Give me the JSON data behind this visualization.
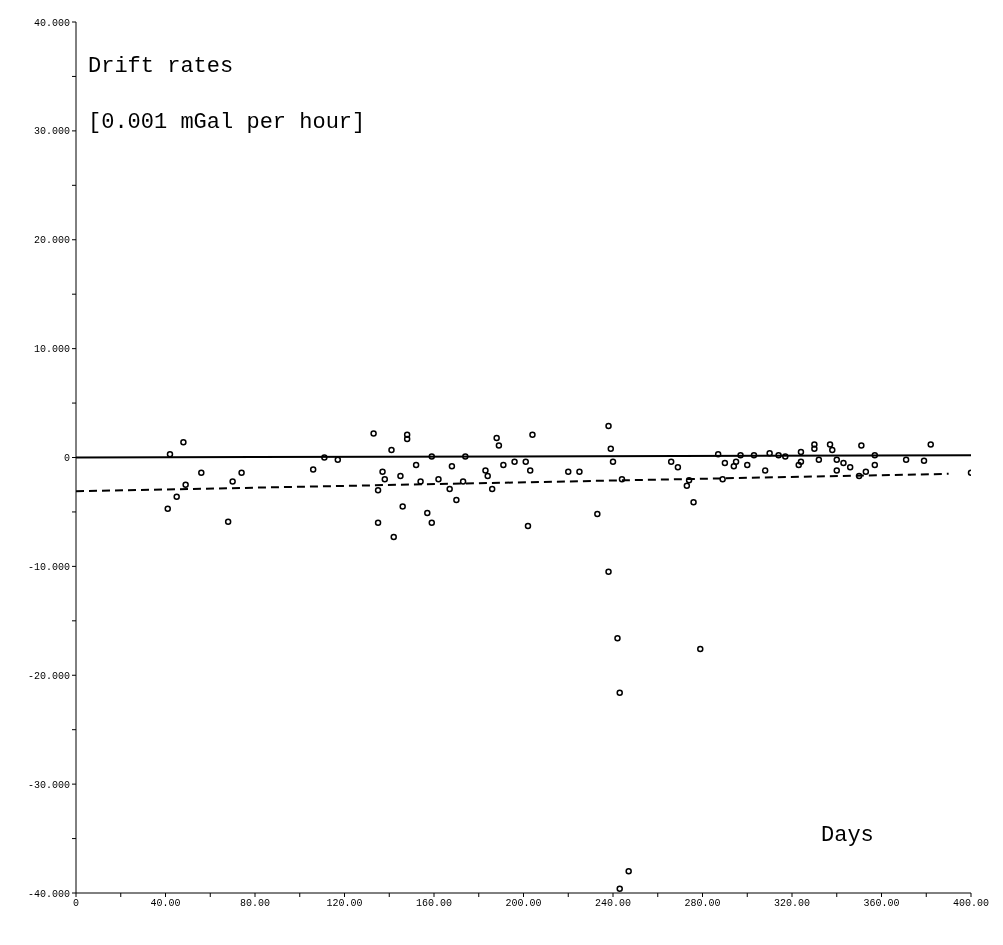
{
  "chart_data": {
    "type": "scatter",
    "title": "Drift rates",
    "ylabel": "[0.001 mGal per hour]",
    "xlabel": "Days",
    "xlim": [
      0,
      400
    ],
    "ylim": [
      -40,
      40
    ],
    "xticks": [
      0,
      {
        "value": 20,
        "label": null
      },
      {
        "value": 40,
        "label": "40.00"
      },
      {
        "value": 60,
        "label": null
      },
      {
        "value": 80,
        "label": "80.00"
      },
      {
        "value": 100,
        "label": null
      },
      {
        "value": 120,
        "label": "120.00"
      },
      {
        "value": 140,
        "label": null
      },
      {
        "value": 160,
        "label": "160.00"
      },
      {
        "value": 180,
        "label": null
      },
      {
        "value": 200,
        "label": "200.00"
      },
      {
        "value": 220,
        "label": null
      },
      {
        "value": 240,
        "label": "240.00"
      },
      {
        "value": 260,
        "label": null
      },
      {
        "value": 280,
        "label": "280.00"
      },
      {
        "value": 300,
        "label": null
      },
      {
        "value": 320,
        "label": "320.00"
      },
      {
        "value": 340,
        "label": null
      },
      {
        "value": 360,
        "label": "360.00"
      },
      {
        "value": 380,
        "label": null
      },
      {
        "value": 400,
        "label": "400.00"
      }
    ],
    "yticks": [
      {
        "value": -40,
        "label": "-40.000"
      },
      {
        "value": -35,
        "label": null
      },
      {
        "value": -30,
        "label": "-30.000"
      },
      {
        "value": -25,
        "label": null
      },
      {
        "value": -20,
        "label": "-20.000"
      },
      {
        "value": -15,
        "label": null
      },
      {
        "value": -10,
        "label": "-10.000"
      },
      {
        "value": -5,
        "label": null
      },
      0,
      {
        "value": 5,
        "label": null
      },
      {
        "value": 10,
        "label": "10.000"
      },
      {
        "value": 15,
        "label": null
      },
      {
        "value": 20,
        "label": "20.000"
      },
      {
        "value": 25,
        "label": null
      },
      {
        "value": 30,
        "label": "30.000"
      },
      {
        "value": 35,
        "label": null
      },
      {
        "value": 40,
        "label": "40.000"
      }
    ],
    "series": [
      {
        "color": "#000000",
        "marker": "circle",
        "x": [
          48,
          42,
          56,
          74,
          70,
          49,
          45,
          41,
          68,
          106,
          111,
          117,
          133,
          137,
          138,
          135,
          135,
          148,
          148,
          141,
          159,
          174,
          152,
          168,
          145,
          154,
          162,
          167,
          173,
          170,
          146,
          157,
          159,
          142,
          188,
          189,
          183,
          184,
          191,
          196,
          201,
          203,
          186,
          204,
          202,
          220,
          225,
          238,
          239,
          240,
          233,
          244,
          266,
          269,
          274,
          273,
          276,
          238,
          242,
          279,
          243,
          247,
          243,
          287,
          290,
          294,
          295,
          300,
          297,
          303,
          308,
          289,
          310,
          314,
          317,
          324,
          324,
          323,
          330,
          330,
          332,
          337,
          338,
          340,
          340,
          343,
          346,
          350,
          353,
          357,
          357,
          351,
          371,
          379,
          382,
          400
        ],
        "values": [
          1.4,
          0.3,
          -1.4,
          -1.4,
          -2.2,
          -2.5,
          -3.6,
          -4.7,
          -5.9,
          -1.1,
          0,
          -0.2,
          2.2,
          -1.3,
          -2.0,
          -3.0,
          -6.0,
          2.1,
          1.7,
          0.7,
          0.1,
          0.1,
          -0.7,
          -0.8,
          -1.7,
          -2.2,
          -2.0,
          -2.9,
          -2.2,
          -3.9,
          -4.5,
          -5.1,
          -6.0,
          -7.3,
          1.8,
          1.1,
          -1.2,
          -1.7,
          -0.7,
          -0.4,
          -0.4,
          -1.2,
          -2.9,
          2.1,
          -6.3,
          -1.3,
          -1.3,
          2.9,
          0.8,
          -0.4,
          -5.2,
          -2.0,
          -0.4,
          -0.9,
          -2.1,
          -2.6,
          -4.1,
          -10.5,
          -16.6,
          -17.6,
          -21.6,
          -38.0,
          -39.6,
          0.3,
          -0.5,
          -0.8,
          -0.4,
          -0.7,
          0.2,
          0.2,
          -1.2,
          -2.0,
          0.4,
          0.2,
          0.1,
          0.5,
          -0.4,
          -0.7,
          1.2,
          0.8,
          -0.2,
          1.2,
          0.7,
          -0.2,
          -1.2,
          -0.5,
          -0.9,
          -1.7,
          -1.3,
          -0.7,
          0.2,
          1.1,
          -0.2,
          -0.3,
          1.2,
          -1.4
        ]
      },
      {
        "type": "line",
        "color": "#000000",
        "marker": "none",
        "line_style": "solid",
        "x": [
          0,
          400
        ],
        "values": [
          0,
          0.2
        ]
      },
      {
        "type": "line",
        "color": "#000000",
        "marker": "none",
        "line_style": "dashed",
        "x": [
          0,
          390
        ],
        "values": [
          -3.1,
          -1.5
        ]
      }
    ]
  }
}
